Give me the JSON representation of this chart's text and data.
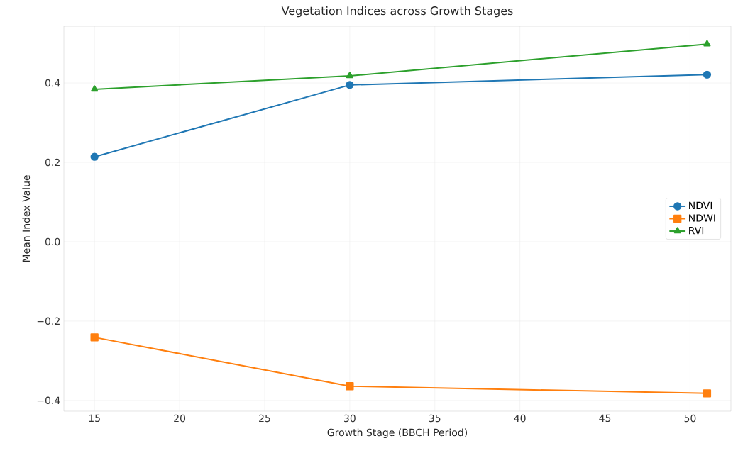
{
  "chart_data": {
    "type": "line",
    "title": "Vegetation Indices across Growth Stages",
    "xlabel": "Growth Stage (BBCH Period)",
    "ylabel": "Mean Index Value",
    "x": [
      15,
      30,
      51
    ],
    "series": [
      {
        "name": "NDVI",
        "color": "#1f77b4",
        "marker": "circle",
        "values": [
          0.214,
          0.395,
          0.421
        ]
      },
      {
        "name": "NDWI",
        "color": "#ff7f0e",
        "marker": "square",
        "values": [
          -0.241,
          -0.364,
          -0.382
        ]
      },
      {
        "name": "RVI",
        "color": "#2ca02c",
        "marker": "triangle",
        "values": [
          0.384,
          0.418,
          0.498
        ]
      }
    ],
    "xlim": [
      13.2,
      52.4
    ],
    "ylim": [
      -0.427,
      0.543
    ],
    "xticks": [
      15,
      20,
      25,
      30,
      35,
      40,
      45,
      50
    ],
    "yticks": [
      {
        "value": -0.4,
        "label": "−0.4"
      },
      {
        "value": -0.2,
        "label": "−0.2"
      },
      {
        "value": 0.0,
        "label": "0.0"
      },
      0.2,
      0.4
    ],
    "grid": true,
    "legend": "right",
    "line_style": "solid"
  }
}
